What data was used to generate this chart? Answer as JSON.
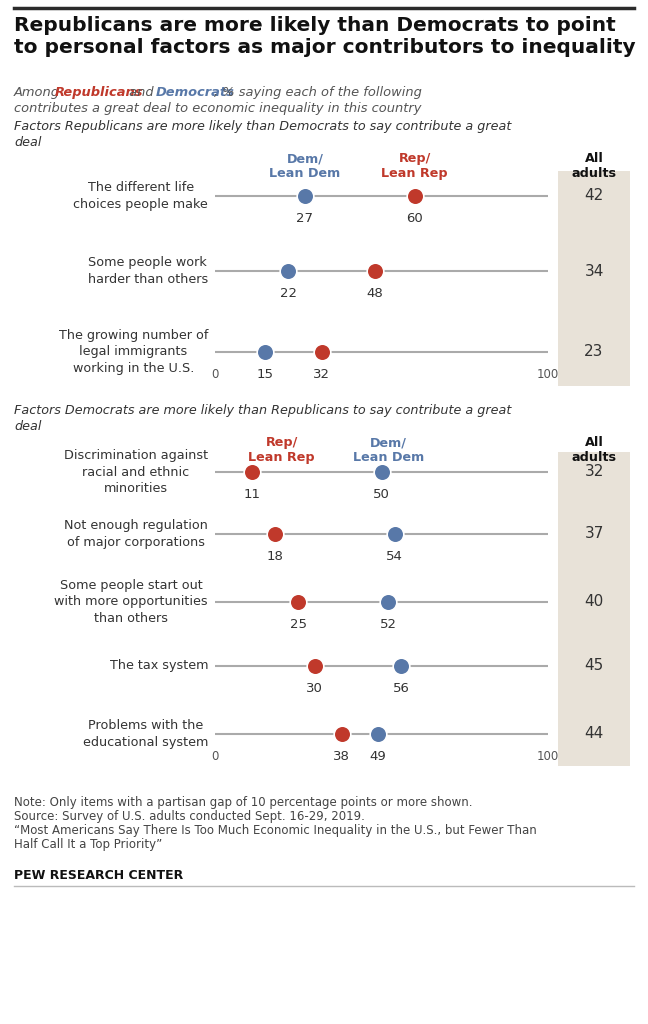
{
  "title": "Republicans are more likely than Democrats to point\nto personal factors as major contributors to inequality",
  "section1_header": "Factors Republicans are more likely than Democrats to say contribute a great\ndeal",
  "section2_header": "Factors Democrats are more likely than Republicans to say contribute a great\ndeal",
  "section1": {
    "col1_label": "Dem/\nLean Dem",
    "col2_label": "Rep/\nLean Rep",
    "col1_color": "#5878a8",
    "col2_color": "#c0392b",
    "items": [
      {
        "label": "The different life\nchoices people make",
        "val1": 27,
        "val2": 60,
        "all": 42
      },
      {
        "label": "Some people work\nharder than others",
        "val1": 22,
        "val2": 48,
        "all": 34
      },
      {
        "label": "The growing number of\nlegal immigrants\nworking in the U.S.",
        "val1": 15,
        "val2": 32,
        "all": 23
      }
    ]
  },
  "section2": {
    "col1_label": "Rep/\nLean Rep",
    "col2_label": "Dem/\nLean Dem",
    "col1_color": "#c0392b",
    "col2_color": "#5878a8",
    "items": [
      {
        "label": "Discrimination against\nracial and ethnic\nminorities",
        "val1": 11,
        "val2": 50,
        "all": 32
      },
      {
        "label": "Not enough regulation\nof major corporations",
        "val1": 18,
        "val2": 54,
        "all": 37
      },
      {
        "label": "Some people start out\nwith more opportunities\nthan others",
        "val1": 25,
        "val2": 52,
        "all": 40
      },
      {
        "label": "The tax system",
        "val1": 30,
        "val2": 56,
        "all": 45
      },
      {
        "label": "Problems with the\neducational system",
        "val1": 38,
        "val2": 49,
        "all": 44
      }
    ]
  },
  "note_lines": [
    "Note: Only items with a partisan gap of 10 percentage points or more shown.",
    "Source: Survey of U.S. adults conducted Sept. 16-29, 2019.",
    "“Most Americans Say There Is Too Much Economic Inequality in the U.S., but Fewer Than",
    "Half Call It a Top Priority”"
  ],
  "footer": "PEW RESEARCH CENTER",
  "dem_color": "#5878a8",
  "rep_color": "#c0392b",
  "bg_color": "#ffffff",
  "all_adults_bg": "#e8e2d8",
  "line_color": "#aaaaaa",
  "top_border_color": "#2b2b2b",
  "bottom_border_color": "#bbbbbb"
}
